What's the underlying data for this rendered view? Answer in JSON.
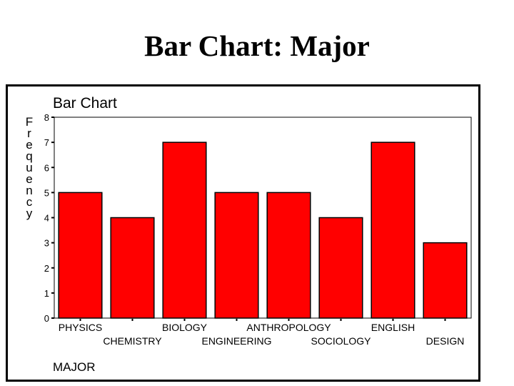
{
  "slide": {
    "title": "Bar Chart: Major"
  },
  "chart_data": {
    "type": "bar",
    "title": "Bar Chart",
    "xlabel": "MAJOR",
    "ylabel": "Frequency",
    "categories": [
      "PHYSICS",
      "CHEMISTRY",
      "BIOLOGY",
      "ENGINEERING",
      "ANTHROPOLOGY",
      "SOCIOLOGY",
      "ENGLISH",
      "DESIGN"
    ],
    "values": [
      5,
      4,
      7,
      5,
      5,
      4,
      7,
      3
    ],
    "ylim": [
      0,
      8
    ],
    "yticks": [
      0,
      1,
      2,
      3,
      4,
      5,
      6,
      7,
      8
    ],
    "grid": false,
    "colors": {
      "bar": "#ff0000",
      "bar_edge": "#000000",
      "axis": "#000000"
    }
  }
}
